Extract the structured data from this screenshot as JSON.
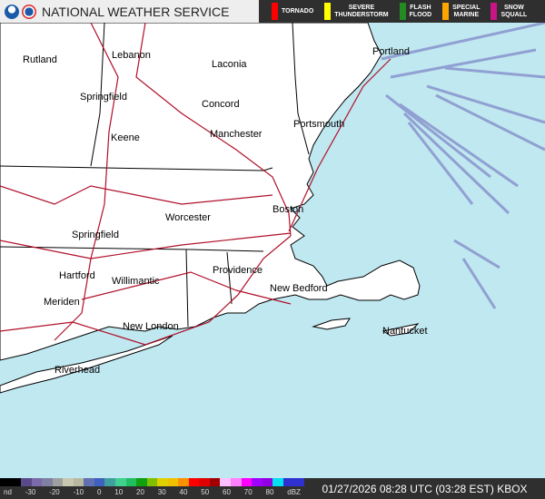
{
  "header": {
    "title": "NATIONAL WEATHER SERVICE",
    "logos": [
      "noaa-logo",
      "nws-logo"
    ]
  },
  "legend": [
    {
      "label": "TORNADO",
      "color": "#ff0000"
    },
    {
      "label": "SEVERE\nTHUNDERSTORM",
      "color": "#ffff00"
    },
    {
      "label": "FLASH\nFLOOD",
      "color": "#228b22"
    },
    {
      "label": "SPECIAL\nMARINE",
      "color": "#ffa500"
    },
    {
      "label": "SNOW\nSQUALL",
      "color": "#c71585"
    }
  ],
  "cities": [
    "Rutland",
    "Lebanon",
    "Laconia",
    "Springfield",
    "Concord",
    "Portsmouth",
    "Keene",
    "Manchester",
    "Portland",
    "Worcester",
    "Boston",
    "Springfield",
    "Hartford",
    "Willimantic",
    "Providence",
    "New Bedford",
    "Meriden",
    "New London",
    "Nantucket",
    "Riverhead"
  ],
  "scale": {
    "ticks": [
      "nd",
      "-30",
      "-20",
      "-10",
      "0",
      "10",
      "20",
      "30",
      "40",
      "50",
      "60",
      "70",
      "80",
      "dBZ"
    ],
    "colors": [
      "#000000",
      "#000000",
      "#5a4a8a",
      "#7a6aaa",
      "#8080a0",
      "#a0a0a0",
      "#c8c8b0",
      "#b8b8a0",
      "#6070b0",
      "#4060c0",
      "#40a0a0",
      "#40d090",
      "#20c060",
      "#10a010",
      "#80c000",
      "#e0d000",
      "#f0c000",
      "#ff9000",
      "#ff0000",
      "#e00000",
      "#a00000",
      "#ffc0ff",
      "#ff80ff",
      "#ff00ff",
      "#a000ff",
      "#9000e0",
      "#00e0f0",
      "#3030d0",
      "#3030d0"
    ]
  },
  "timestamp": "01/27/2026 08:28 UTC (03:28 EST) KBOX"
}
